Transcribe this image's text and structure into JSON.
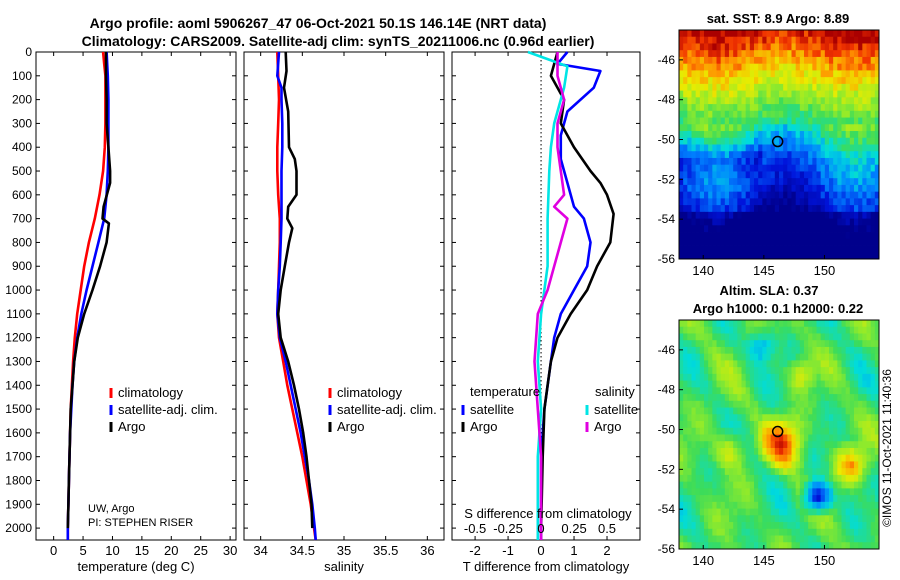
{
  "figure": {
    "title_line1": "Argo profile: aoml 5906267_47 06-Oct-2021 50.1S 146.14E (NRT data)",
    "title_line2": "Climatology: CARS2009. Satellite-adj clim: synTS_20211006.nc (0.96d earlier)",
    "credit": "UW, Argo",
    "pi": "PI: STEPHEN RISER",
    "watermark": "©IMOS 11-Oct-2021 11:40:36"
  },
  "colors": {
    "climatology": "#ff0000",
    "satellite": "#0000ff",
    "argo": "#000000",
    "sal_sat": "#00e5e5",
    "sal_diff": "#e000e0"
  },
  "chart_data": [
    {
      "type": "line",
      "id": "temp",
      "xlabel": "temperature (deg C)",
      "ylabel": "",
      "xlim": [
        -3,
        31
      ],
      "ylim": [
        2050,
        0
      ],
      "xticks": [
        0,
        5,
        10,
        15,
        20,
        25,
        30
      ],
      "xtick_labels": [
        "0",
        "5",
        "10",
        "15",
        "20",
        "25",
        "30"
      ],
      "yticks": [
        0,
        100,
        200,
        300,
        400,
        500,
        600,
        700,
        800,
        900,
        1000,
        1100,
        1200,
        1300,
        1400,
        1500,
        1600,
        1700,
        1800,
        1900,
        2000
      ],
      "ytick_labels": [
        "0",
        "100",
        "200",
        "300",
        "400",
        "500",
        "600",
        "700",
        "800",
        "900",
        "1000",
        "1100",
        "1200",
        "1300",
        "1400",
        "1500",
        "1600",
        "1700",
        "1800",
        "1900",
        "2000"
      ],
      "legend": [
        "climatology",
        "satellite-adj. clim.",
        "Argo"
      ],
      "series": [
        {
          "name": "climatology",
          "color": "#ff0000",
          "points": [
            [
              8.4,
              0
            ],
            [
              8.6,
              50
            ],
            [
              8.8,
              100
            ],
            [
              8.8,
              200
            ],
            [
              8.8,
              300
            ],
            [
              8.7,
              400
            ],
            [
              8.4,
              500
            ],
            [
              7.8,
              600
            ],
            [
              7.0,
              700
            ],
            [
              6.0,
              800
            ],
            [
              5.2,
              900
            ],
            [
              4.6,
              1000
            ],
            [
              4.0,
              1100
            ],
            [
              3.6,
              1200
            ],
            [
              3.3,
              1300
            ],
            [
              3.1,
              1400
            ],
            [
              2.9,
              1500
            ],
            [
              2.8,
              1600
            ],
            [
              2.7,
              1700
            ],
            [
              2.6,
              1800
            ],
            [
              2.5,
              1900
            ],
            [
              2.4,
              2000
            ],
            [
              2.4,
              2050
            ]
          ]
        },
        {
          "name": "satellite-adj. clim.",
          "color": "#0000ff",
          "points": [
            [
              9.0,
              0
            ],
            [
              9.2,
              100
            ],
            [
              9.3,
              200
            ],
            [
              9.3,
              300
            ],
            [
              9.3,
              400
            ],
            [
              9.2,
              500
            ],
            [
              9.0,
              600
            ],
            [
              8.8,
              650
            ],
            [
              8.6,
              700
            ],
            [
              7.6,
              800
            ],
            [
              6.6,
              900
            ],
            [
              5.6,
              1000
            ],
            [
              4.7,
              1100
            ],
            [
              4.0,
              1200
            ],
            [
              3.5,
              1300
            ],
            [
              3.2,
              1400
            ],
            [
              3.0,
              1500
            ],
            [
              2.8,
              1600
            ],
            [
              2.7,
              1700
            ],
            [
              2.6,
              1800
            ],
            [
              2.5,
              1900
            ],
            [
              2.4,
              2000
            ],
            [
              2.4,
              2050
            ]
          ]
        },
        {
          "name": "Argo",
          "color": "#000000",
          "points": [
            [
              8.9,
              0
            ],
            [
              8.9,
              100
            ],
            [
              9.0,
              200
            ],
            [
              9.0,
              300
            ],
            [
              9.3,
              400
            ],
            [
              9.6,
              500
            ],
            [
              9.6,
              550
            ],
            [
              8.5,
              650
            ],
            [
              8.3,
              700
            ],
            [
              9.4,
              720
            ],
            [
              9.0,
              800
            ],
            [
              7.9,
              900
            ],
            [
              6.6,
              1000
            ],
            [
              5.2,
              1100
            ],
            [
              4.1,
              1200
            ],
            [
              3.5,
              1300
            ],
            [
              3.2,
              1400
            ],
            [
              2.9,
              1500
            ],
            [
              2.8,
              1600
            ],
            [
              2.7,
              1700
            ],
            [
              2.6,
              1800
            ],
            [
              2.5,
              1900
            ],
            [
              2.4,
              2000
            ]
          ]
        }
      ]
    },
    {
      "type": "line",
      "id": "sal",
      "xlabel": "salinity",
      "ylabel": "",
      "xlim": [
        33.8,
        36.2
      ],
      "ylim": [
        2050,
        0
      ],
      "xticks": [
        34,
        34.5,
        35,
        35.5,
        36
      ],
      "xtick_labels": [
        "34",
        "34.5",
        "35",
        "35.5",
        "36"
      ],
      "legend": [
        "climatology",
        "satellite-adj. clim.",
        "Argo"
      ],
      "series": [
        {
          "name": "climatology",
          "color": "#ff0000",
          "points": [
            [
              34.2,
              0
            ],
            [
              34.21,
              100
            ],
            [
              34.22,
              200
            ],
            [
              34.21,
              300
            ],
            [
              34.2,
              400
            ],
            [
              34.2,
              500
            ],
            [
              34.21,
              600
            ],
            [
              34.23,
              700
            ],
            [
              34.23,
              800
            ],
            [
              34.22,
              900
            ],
            [
              34.21,
              1000
            ],
            [
              34.2,
              1100
            ],
            [
              34.22,
              1200
            ],
            [
              34.27,
              1300
            ],
            [
              34.32,
              1400
            ],
            [
              34.38,
              1500
            ],
            [
              34.44,
              1600
            ],
            [
              34.5,
              1700
            ],
            [
              34.55,
              1800
            ],
            [
              34.6,
              1900
            ],
            [
              34.64,
              2000
            ],
            [
              34.66,
              2050
            ]
          ]
        },
        {
          "name": "satellite-adj. clim.",
          "color": "#0000ff",
          "points": [
            [
              34.22,
              0
            ],
            [
              34.2,
              100
            ],
            [
              34.25,
              150
            ],
            [
              34.25,
              200
            ],
            [
              34.26,
              300
            ],
            [
              34.26,
              400
            ],
            [
              34.25,
              500
            ],
            [
              34.25,
              600
            ],
            [
              34.25,
              700
            ],
            [
              34.24,
              800
            ],
            [
              34.23,
              900
            ],
            [
              34.21,
              1000
            ],
            [
              34.2,
              1100
            ],
            [
              34.23,
              1200
            ],
            [
              34.3,
              1300
            ],
            [
              34.36,
              1400
            ],
            [
              34.42,
              1500
            ],
            [
              34.48,
              1600
            ],
            [
              34.53,
              1700
            ],
            [
              34.58,
              1800
            ],
            [
              34.62,
              1900
            ],
            [
              34.65,
              2000
            ],
            [
              34.66,
              2050
            ]
          ]
        },
        {
          "name": "Argo",
          "color": "#000000",
          "points": [
            [
              34.3,
              0
            ],
            [
              34.31,
              80
            ],
            [
              34.28,
              150
            ],
            [
              34.33,
              250
            ],
            [
              34.34,
              400
            ],
            [
              34.41,
              450
            ],
            [
              34.43,
              500
            ],
            [
              34.43,
              600
            ],
            [
              34.33,
              650
            ],
            [
              34.32,
              700
            ],
            [
              34.38,
              740
            ],
            [
              34.34,
              800
            ],
            [
              34.29,
              900
            ],
            [
              34.24,
              1000
            ],
            [
              34.21,
              1100
            ],
            [
              34.24,
              1200
            ],
            [
              34.33,
              1300
            ],
            [
              34.4,
              1400
            ],
            [
              34.46,
              1500
            ],
            [
              34.51,
              1600
            ],
            [
              34.55,
              1700
            ],
            [
              34.58,
              1800
            ],
            [
              34.61,
              1900
            ],
            [
              34.62,
              2000
            ]
          ]
        }
      ]
    },
    {
      "type": "line",
      "id": "diff",
      "xlabel": "T difference from climatology",
      "xlabel_top": "S difference from climatology",
      "xlim": [
        -2.7,
        3.0
      ],
      "ylim": [
        2050,
        0
      ],
      "xticks": [
        -2,
        -1,
        0,
        1,
        2
      ],
      "xtick_labels": [
        "-2",
        "-1",
        "0",
        "1",
        "2"
      ],
      "sticks": [
        -2,
        -1,
        0,
        1,
        2
      ],
      "stick_labels": [
        "-0.5",
        "-0.25",
        "0",
        "0.25",
        "0.5"
      ],
      "legend_titles": [
        "temperature",
        "salinity"
      ],
      "legend": [
        "satellite",
        "Argo",
        "satellite",
        "Argo"
      ],
      "series": [
        {
          "name": "T satellite",
          "color": "#0000ff",
          "points": [
            [
              0.8,
              0
            ],
            [
              0.5,
              50
            ],
            [
              1.8,
              80
            ],
            [
              1.6,
              150
            ],
            [
              0.8,
              250
            ],
            [
              0.6,
              350
            ],
            [
              0.6,
              450
            ],
            [
              0.8,
              550
            ],
            [
              1.0,
              650
            ],
            [
              1.3,
              700
            ],
            [
              1.5,
              800
            ],
            [
              1.4,
              900
            ],
            [
              1.0,
              1000
            ],
            [
              0.6,
              1100
            ],
            [
              0.4,
              1200
            ],
            [
              0.3,
              1300
            ],
            [
              0.1,
              1500
            ],
            [
              0.0,
              1700
            ],
            [
              0.0,
              2050
            ]
          ]
        },
        {
          "name": "T Argo",
          "color": "#000000",
          "points": [
            [
              0.5,
              0
            ],
            [
              0.3,
              100
            ],
            [
              0.7,
              200
            ],
            [
              0.6,
              300
            ],
            [
              1.0,
              400
            ],
            [
              1.5,
              500
            ],
            [
              1.8,
              550
            ],
            [
              2.0,
              600
            ],
            [
              2.2,
              680
            ],
            [
              2.1,
              800
            ],
            [
              1.7,
              900
            ],
            [
              1.4,
              1000
            ],
            [
              0.9,
              1100
            ],
            [
              0.5,
              1200
            ],
            [
              0.3,
              1300
            ],
            [
              0.2,
              1400
            ],
            [
              0.1,
              1500
            ],
            [
              0.05,
              1700
            ],
            [
              0.0,
              2000
            ]
          ]
        },
        {
          "name": "S satellite",
          "color": "#00e5e5",
          "points": [
            [
              -0.4,
              0
            ],
            [
              0.2,
              30
            ],
            [
              0.8,
              60
            ],
            [
              0.7,
              150
            ],
            [
              0.4,
              300
            ],
            [
              0.3,
              400
            ],
            [
              0.25,
              500
            ],
            [
              0.2,
              700
            ],
            [
              0.2,
              900
            ],
            [
              0.0,
              1100
            ],
            [
              -0.1,
              1300
            ],
            [
              0.0,
              1500
            ],
            [
              -0.1,
              1700
            ],
            [
              -0.1,
              2050
            ]
          ]
        },
        {
          "name": "S Argo",
          "color": "#e000e0",
          "points": [
            [
              0.5,
              0
            ],
            [
              0.5,
              100
            ],
            [
              0.7,
              200
            ],
            [
              0.5,
              300
            ],
            [
              0.5,
              400
            ],
            [
              0.6,
              500
            ],
            [
              0.7,
              600
            ],
            [
              0.4,
              650
            ],
            [
              0.8,
              700
            ],
            [
              0.6,
              800
            ],
            [
              0.4,
              900
            ],
            [
              0.2,
              1000
            ],
            [
              -0.1,
              1100
            ],
            [
              -0.2,
              1300
            ],
            [
              -0.1,
              1500
            ],
            [
              0.0,
              1700
            ],
            [
              0.0,
              2050
            ]
          ]
        }
      ]
    },
    {
      "type": "heatmap",
      "id": "sst",
      "title": "sat. SST: 8.9 Argo: 8.89",
      "xlim": [
        138,
        154.5
      ],
      "ylim": [
        -56,
        -44.5
      ],
      "xticks": [
        140,
        145,
        150
      ],
      "xtick_labels": [
        "140",
        "145",
        "150"
      ],
      "yticks": [
        -46,
        -48,
        -50,
        -52,
        -54,
        -56
      ],
      "ytick_labels": [
        "-46",
        "-48",
        "-50",
        "-52",
        "-54",
        "-56"
      ],
      "marker": {
        "lon": 146.14,
        "lat": -50.1
      }
    },
    {
      "type": "heatmap",
      "id": "sla",
      "title": "Altim. SLA: 0.37",
      "subtitle": "Argo h1000: 0.1 h2000: 0.22",
      "xlim": [
        138,
        154.5
      ],
      "ylim": [
        -56,
        -44.5
      ],
      "xticks": [
        140,
        145,
        150
      ],
      "xtick_labels": [
        "140",
        "145",
        "150"
      ],
      "yticks": [
        -46,
        -48,
        -50,
        -52,
        -54,
        -56
      ],
      "ytick_labels": [
        "-46",
        "-48",
        "-50",
        "-52",
        "-54",
        "-56"
      ],
      "marker": {
        "lon": 146.14,
        "lat": -50.1
      }
    }
  ]
}
